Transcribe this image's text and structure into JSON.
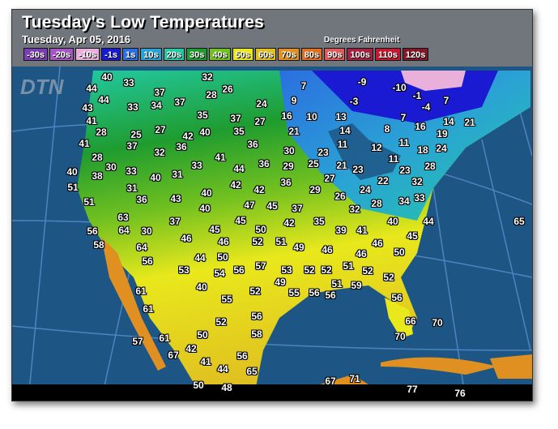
{
  "header": {
    "title": "Tuesday's Low Temperatures",
    "subtitle": "Tuesday, Apr 05, 2016",
    "units": "Degrees Fahrenheit",
    "logo": "DTN"
  },
  "legend": [
    {
      "label": "-30s",
      "color": "#7b3fb3"
    },
    {
      "label": "-20s",
      "color": "#a457c4"
    },
    {
      "label": "-10s",
      "color": "#eab0dc"
    },
    {
      "label": "-1s",
      "color": "#1a1ad2"
    },
    {
      "label": "1s",
      "color": "#2b6fe0"
    },
    {
      "label": "10s",
      "color": "#2aa3d4"
    },
    {
      "label": "20s",
      "color": "#22c9a3"
    },
    {
      "label": "30s",
      "color": "#1f9c2f"
    },
    {
      "label": "40s",
      "color": "#70c020"
    },
    {
      "label": "50s",
      "color": "#e8e81c"
    },
    {
      "label": "60s",
      "color": "#e0bf20"
    },
    {
      "label": "70s",
      "color": "#e09020"
    },
    {
      "label": "80s",
      "color": "#e07020"
    },
    {
      "label": "90s",
      "color": "#e05858"
    },
    {
      "label": "100s",
      "color": "#a42240"
    },
    {
      "label": "110s",
      "color": "#c41830"
    },
    {
      "label": "120s",
      "color": "#801828"
    }
  ],
  "map_colors": {
    "ocean": "#1d5685",
    "grid": "#5b8fd0"
  },
  "temperatures": [
    "40",
    "33",
    "44",
    "44",
    "37",
    "37",
    "28",
    "32",
    "26",
    "24",
    "43",
    "33",
    "34",
    "35",
    "37",
    "27",
    "41",
    "28",
    "25",
    "27",
    "42",
    "40",
    "35",
    "36",
    "41",
    "37",
    "32",
    "36",
    "33",
    "41",
    "28",
    "30",
    "33",
    "44",
    "36",
    "40",
    "38",
    "40",
    "31",
    "31",
    "42",
    "42",
    "51",
    "36",
    "43",
    "40",
    "40",
    "47",
    "45",
    "51",
    "45",
    "63",
    "37",
    "64",
    "30",
    "56",
    "58",
    "46",
    "45",
    "50",
    "42",
    "35",
    "64",
    "46",
    "52",
    "51",
    "49",
    "56",
    "44",
    "50",
    "53",
    "54",
    "56",
    "57",
    "53",
    "52",
    "49",
    "40",
    "55",
    "52",
    "55",
    "56",
    "61",
    "61",
    "56",
    "52",
    "58",
    "50",
    "57",
    "61",
    "42",
    "67",
    "41",
    "44",
    "56",
    "65",
    "50",
    "48",
    "7",
    "-9",
    "-10",
    "-1",
    "9",
    "-3",
    "7",
    "-4",
    "16",
    "10",
    "13",
    "8",
    "7",
    "16",
    "14",
    "21",
    "21",
    "14",
    "19",
    "11",
    "11",
    "30",
    "23",
    "12",
    "11",
    "18",
    "24",
    "29",
    "25",
    "21",
    "23",
    "23",
    "28",
    "27",
    "32",
    "36",
    "22",
    "29",
    "24",
    "34",
    "33",
    "26",
    "28",
    "32",
    "37",
    "40",
    "44",
    "65",
    "39",
    "41",
    "46",
    "45",
    "46",
    "46",
    "50",
    "51",
    "52",
    "52",
    "52",
    "51",
    "59",
    "56",
    "56",
    "66",
    "70",
    "70",
    "67",
    "71",
    "77",
    "76"
  ]
}
